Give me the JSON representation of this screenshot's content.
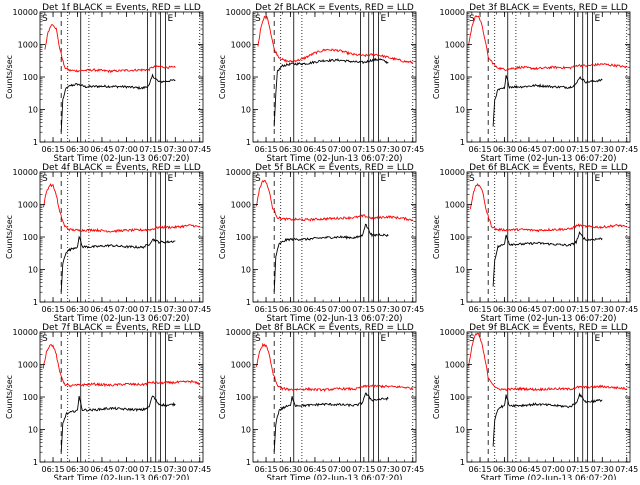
{
  "colors": {
    "events": "#000000",
    "lld": "#ff0000",
    "axis": "#000000",
    "background": "#ffffff"
  },
  "chart_data": {
    "type": "line",
    "layout": "3x3 grid",
    "yscale": "log",
    "ylim": [
      1,
      10000
    ],
    "xlim": [
      "06:07",
      "07:47"
    ],
    "ylabel": "Counts/sec",
    "xlabel": "Start Time (02-Jun-13 06:07:20)",
    "x_ticks": [
      "06:15",
      "06:30",
      "06:45",
      "07:00",
      "07:15",
      "07:30",
      "07:45"
    ],
    "y_ticks": [
      "1",
      "10",
      "100",
      "1000",
      "10000"
    ],
    "time_markers": {
      "solid": [
        "06:32",
        "07:13",
        "07:18",
        "07:21",
        "07:24"
      ],
      "dashed": [
        "06:20"
      ],
      "dotted": [
        "06:24",
        "06:37",
        "07:45"
      ]
    },
    "legend_marks": [
      "S",
      "E"
    ],
    "panels": [
      {
        "title": "Det 1f BLACK = Events, RED = LLD",
        "series": [
          {
            "id": "events",
            "name": "Events",
            "x": [
              "06:20",
              "06:21",
              "06:23",
              "06:26",
              "06:30",
              "06:35",
              "06:45",
              "07:00",
              "07:10",
              "07:14",
              "07:16",
              "07:20",
              "07:25",
              "07:30"
            ],
            "values": [
              2,
              20,
              45,
              55,
              60,
              50,
              52,
              50,
              45,
              55,
              110,
              70,
              75,
              80
            ]
          },
          {
            "id": "lld",
            "name": "LLD",
            "x": [
              "06:10",
              "06:12",
              "06:14",
              "06:15",
              "06:17",
              "06:19",
              "06:22",
              "06:25",
              "06:30",
              "06:40",
              "06:50",
              "07:00",
              "07:10",
              "07:14",
              "07:16",
              "07:20",
              "07:25",
              "07:30"
            ],
            "values": [
              700,
              2500,
              4000,
              4200,
              3000,
              800,
              200,
              160,
              155,
              165,
              150,
              160,
              165,
              170,
              200,
              210,
              200,
              195
            ]
          }
        ]
      },
      {
        "title": "Det 2f BLACK = Events, RED = LLD",
        "series": [
          {
            "id": "events",
            "name": "Events",
            "x": [
              "06:20",
              "06:21",
              "06:22",
              "06:25",
              "06:30",
              "06:40",
              "06:50",
              "07:00",
              "07:10",
              "07:15",
              "07:20",
              "07:25",
              "07:30"
            ],
            "values": [
              3,
              30,
              150,
              220,
              250,
              260,
              320,
              330,
              290,
              280,
              330,
              350,
              270
            ]
          },
          {
            "id": "lld",
            "name": "LLD",
            "x": [
              "06:10",
              "06:12",
              "06:14",
              "06:16",
              "06:18",
              "06:20",
              "06:23",
              "06:26",
              "06:30",
              "06:37",
              "06:45",
              "06:52",
              "07:00",
              "07:08",
              "07:15",
              "07:22",
              "07:30",
              "07:40",
              "07:45"
            ],
            "values": [
              900,
              3500,
              7000,
              6500,
              2200,
              700,
              400,
              320,
              300,
              350,
              550,
              700,
              650,
              500,
              450,
              500,
              400,
              300,
              280
            ]
          }
        ]
      },
      {
        "title": "Det 3f BLACK = Events, RED = LLD",
        "series": [
          {
            "id": "events",
            "name": "Events",
            "x": [
              "06:23",
              "06:24",
              "06:26",
              "06:30",
              "06:31",
              "06:33",
              "06:40",
              "06:50",
              "07:00",
              "07:10",
              "07:14",
              "07:16",
              "07:20",
              "07:25",
              "07:30"
            ],
            "values": [
              3,
              20,
              40,
              45,
              110,
              50,
              50,
              55,
              50,
              48,
              60,
              100,
              70,
              75,
              80
            ]
          },
          {
            "id": "lld",
            "name": "LLD",
            "x": [
              "06:08",
              "06:10",
              "06:12",
              "06:14",
              "06:16",
              "06:18",
              "06:20",
              "06:25",
              "06:30",
              "06:40",
              "06:50",
              "07:00",
              "07:10",
              "07:15",
              "07:20",
              "07:30",
              "07:40",
              "07:45"
            ],
            "values": [
              1000,
              3500,
              7000,
              8000,
              4000,
              1500,
              400,
              200,
              170,
              200,
              180,
              200,
              190,
              230,
              220,
              250,
              220,
              200
            ]
          }
        ]
      },
      {
        "title": "Det 4f BLACK = Events, RED = LLD",
        "series": [
          {
            "id": "events",
            "name": "Events",
            "x": [
              "06:20",
              "06:21",
              "06:23",
              "06:27",
              "06:30",
              "06:31",
              "06:33",
              "06:40",
              "06:50",
              "07:00",
              "07:10",
              "07:14",
              "07:16",
              "07:20",
              "07:25",
              "07:30"
            ],
            "values": [
              2,
              15,
              35,
              45,
              50,
              100,
              50,
              50,
              55,
              50,
              48,
              60,
              85,
              70,
              70,
              75
            ]
          },
          {
            "id": "lld",
            "name": "LLD",
            "x": [
              "06:09",
              "06:11",
              "06:13",
              "06:15",
              "06:17",
              "06:19",
              "06:22",
              "06:25",
              "06:30",
              "06:40",
              "06:50",
              "07:00",
              "07:10",
              "07:15",
              "07:20",
              "07:30",
              "07:40",
              "07:45"
            ],
            "values": [
              800,
              2500,
              4000,
              3800,
              2000,
              600,
              220,
              170,
              160,
              165,
              150,
              160,
              165,
              170,
              200,
              200,
              230,
              200
            ]
          }
        ]
      },
      {
        "title": "Det 5f BLACK = Events, RED = LLD",
        "series": [
          {
            "id": "events",
            "name": "Events",
            "x": [
              "06:20",
              "06:21",
              "06:23",
              "06:27",
              "06:30",
              "06:40",
              "06:50",
              "07:00",
              "07:10",
              "07:14",
              "07:16",
              "07:20",
              "07:25",
              "07:30"
            ],
            "values": [
              2,
              25,
              60,
              80,
              85,
              85,
              95,
              100,
              95,
              110,
              250,
              110,
              120,
              110
            ]
          },
          {
            "id": "lld",
            "name": "LLD",
            "x": [
              "06:09",
              "06:11",
              "06:13",
              "06:15",
              "06:17",
              "06:19",
              "06:22",
              "06:25",
              "06:30",
              "06:40",
              "06:50",
              "07:00",
              "07:10",
              "07:15",
              "07:20",
              "07:30",
              "07:40",
              "07:45"
            ],
            "values": [
              900,
              3000,
              5500,
              5000,
              2500,
              800,
              400,
              360,
              350,
              340,
              360,
              380,
              400,
              450,
              380,
              420,
              370,
              330
            ]
          }
        ]
      },
      {
        "title": "Det 6f BLACK = Events, RED = LLD",
        "series": [
          {
            "id": "events",
            "name": "Events",
            "x": [
              "06:23",
              "06:24",
              "06:26",
              "06:30",
              "06:31",
              "06:33",
              "06:40",
              "06:50",
              "07:00",
              "07:10",
              "07:14",
              "07:16",
              "07:20",
              "07:25",
              "07:30"
            ],
            "values": [
              3,
              20,
              50,
              60,
              120,
              60,
              60,
              65,
              60,
              55,
              70,
              130,
              80,
              85,
              90
            ]
          },
          {
            "id": "lld",
            "name": "LLD",
            "x": [
              "06:09",
              "06:11",
              "06:13",
              "06:15",
              "06:17",
              "06:19",
              "06:22",
              "06:25",
              "06:30",
              "06:40",
              "06:50",
              "07:00",
              "07:10",
              "07:15",
              "07:20",
              "07:30",
              "07:40",
              "07:45"
            ],
            "values": [
              700,
              2500,
              4000,
              3800,
              2000,
              600,
              220,
              170,
              165,
              170,
              160,
              170,
              175,
              230,
              210,
              200,
              230,
              200
            ]
          }
        ]
      },
      {
        "title": "Det 7f BLACK = Events, RED = LLD",
        "series": [
          {
            "id": "events",
            "name": "Events",
            "x": [
              "06:20",
              "06:21",
              "06:23",
              "06:27",
              "06:30",
              "06:31",
              "06:33",
              "06:40",
              "06:50",
              "07:00",
              "07:10",
              "07:14",
              "07:16",
              "07:20",
              "07:25",
              "07:30"
            ],
            "values": [
              2,
              15,
              30,
              35,
              40,
              100,
              40,
              40,
              45,
              42,
              40,
              50,
              110,
              60,
              55,
              60
            ]
          },
          {
            "id": "lld",
            "name": "LLD",
            "x": [
              "06:09",
              "06:11",
              "06:13",
              "06:15",
              "06:17",
              "06:19",
              "06:22",
              "06:25",
              "06:30",
              "06:40",
              "06:50",
              "07:00",
              "07:10",
              "07:15",
              "07:20",
              "07:30",
              "07:40",
              "07:45"
            ],
            "values": [
              800,
              2500,
              4000,
              3800,
              2000,
              600,
              250,
              220,
              230,
              250,
              230,
              250,
              240,
              280,
              270,
              280,
              300,
              250
            ]
          }
        ]
      },
      {
        "title": "Det 8f BLACK = Events, RED = LLD",
        "series": [
          {
            "id": "events",
            "name": "Events",
            "x": [
              "06:20",
              "06:21",
              "06:23",
              "06:27",
              "06:30",
              "06:31",
              "06:33",
              "06:40",
              "06:50",
              "07:00",
              "07:10",
              "07:14",
              "07:16",
              "07:20",
              "07:25",
              "07:30"
            ],
            "values": [
              2,
              15,
              40,
              50,
              55,
              100,
              55,
              55,
              60,
              58,
              55,
              65,
              130,
              80,
              85,
              90
            ]
          },
          {
            "id": "lld",
            "name": "LLD",
            "x": [
              "06:09",
              "06:11",
              "06:13",
              "06:15",
              "06:17",
              "06:19",
              "06:22",
              "06:25",
              "06:30",
              "06:40",
              "06:50",
              "07:00",
              "07:10",
              "07:15",
              "07:20",
              "07:30",
              "07:40",
              "07:45"
            ],
            "values": [
              800,
              2500,
              4000,
              3800,
              2000,
              600,
              220,
              180,
              170,
              175,
              165,
              180,
              175,
              210,
              220,
              210,
              200,
              180
            ]
          }
        ]
      },
      {
        "title": "Det 9f BLACK = Events, RED = LLD",
        "series": [
          {
            "id": "events",
            "name": "Events",
            "x": [
              "06:23",
              "06:24",
              "06:26",
              "06:30",
              "06:31",
              "06:33",
              "06:40",
              "06:50",
              "07:00",
              "07:10",
              "07:14",
              "07:16",
              "07:20",
              "07:25",
              "07:30"
            ],
            "values": [
              3,
              20,
              45,
              55,
              110,
              55,
              55,
              60,
              55,
              50,
              65,
              120,
              70,
              75,
              80
            ]
          },
          {
            "id": "lld",
            "name": "LLD",
            "x": [
              "06:08",
              "06:10",
              "06:12",
              "06:14",
              "06:16",
              "06:18",
              "06:20",
              "06:25",
              "06:30",
              "06:40",
              "06:50",
              "07:00",
              "07:10",
              "07:15",
              "07:20",
              "07:30",
              "07:40",
              "07:45"
            ],
            "values": [
              900,
              3500,
              8000,
              9000,
              4500,
              1500,
              400,
              180,
              170,
              180,
              170,
              180,
              175,
              200,
              200,
              210,
              190,
              180
            ]
          }
        ]
      }
    ]
  }
}
